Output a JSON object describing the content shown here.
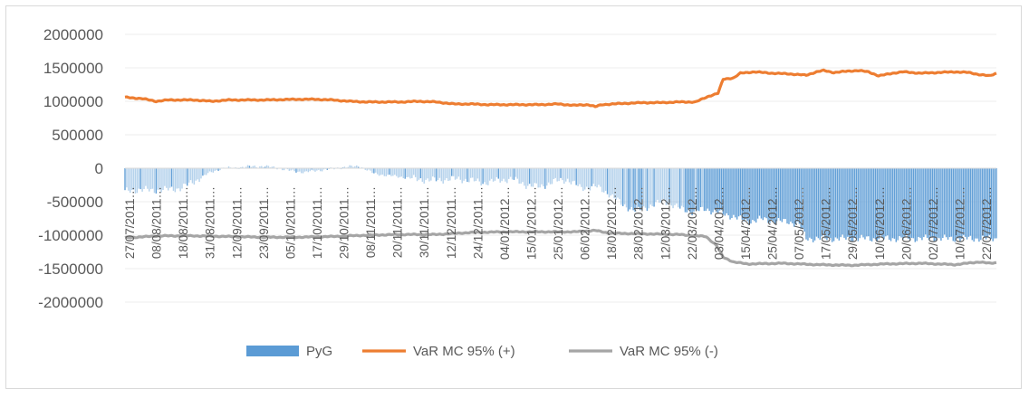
{
  "chart_data": {
    "type": "bar+line",
    "title": "",
    "xlabel": "",
    "ylabel": "",
    "ylim": [
      -2000000,
      2000000
    ],
    "yticks": [
      2000000,
      1500000,
      1000000,
      500000,
      0,
      -500000,
      -1000000,
      -1500000,
      -2000000
    ],
    "ytick_labels": [
      "2000000",
      "1500000",
      "1000000",
      "500000",
      "0",
      "-500000",
      "-1000000",
      "-1500000",
      "-2000000"
    ],
    "xtick_labels": [
      "27/07/2011",
      "08/08/2011",
      "18/08/2011",
      "31/08/2011",
      "12/09/2011",
      "23/09/2011",
      "05/10/2011",
      "17/10/2011",
      "29/10/2011",
      "08/11/2011",
      "20/11/2011",
      "30/11/2011",
      "12/12/2011",
      "24/12/2011",
      "04/01/2012",
      "15/01/2012",
      "25/01/2012",
      "06/02/2012",
      "18/02/2012",
      "28/02/2012",
      "12/03/2012",
      "22/03/2012",
      "03/04/2012",
      "15/04/2012",
      "25/04/2012",
      "07/05/2012",
      "17/05/2012",
      "29/05/2012",
      "10/06/2012",
      "20/06/2012",
      "02/07/2012",
      "10/07/2012",
      "22/07/2012"
    ],
    "xtick_suffix": "…",
    "grid": true,
    "legend_position": "bottom",
    "series": [
      {
        "name": "PyG",
        "kind": "bar",
        "color": "#5b9bd5",
        "anchors": [
          [
            0,
            -350000
          ],
          [
            8,
            -320000
          ],
          [
            16,
            -330000
          ],
          [
            24,
            -320000
          ],
          [
            32,
            -300000
          ],
          [
            40,
            -200000
          ],
          [
            48,
            -80000
          ],
          [
            56,
            0
          ],
          [
            64,
            5000
          ],
          [
            72,
            25000
          ],
          [
            80,
            30000
          ],
          [
            88,
            5000
          ],
          [
            96,
            -40000
          ],
          [
            104,
            -60000
          ],
          [
            112,
            -30000
          ],
          [
            120,
            -10000
          ],
          [
            128,
            20000
          ],
          [
            136,
            30000
          ],
          [
            144,
            -80000
          ],
          [
            152,
            -110000
          ],
          [
            160,
            -130000
          ],
          [
            168,
            -160000
          ],
          [
            176,
            -180000
          ],
          [
            184,
            -170000
          ],
          [
            192,
            -160000
          ],
          [
            200,
            -180000
          ],
          [
            208,
            -220000
          ],
          [
            216,
            -180000
          ],
          [
            224,
            -160000
          ],
          [
            232,
            -250000
          ],
          [
            240,
            -280000
          ],
          [
            248,
            -200000
          ],
          [
            256,
            -170000
          ],
          [
            264,
            -300000
          ],
          [
            272,
            -270000
          ],
          [
            280,
            -380000
          ],
          [
            288,
            -550000
          ],
          [
            296,
            -640000
          ],
          [
            304,
            -560000
          ],
          [
            312,
            -490000
          ],
          [
            320,
            -590000
          ],
          [
            328,
            -650000
          ],
          [
            336,
            -610000
          ],
          [
            344,
            -670000
          ],
          [
            352,
            -720000
          ],
          [
            360,
            -800000
          ],
          [
            368,
            -760000
          ],
          [
            376,
            -790000
          ],
          [
            384,
            -800000
          ],
          [
            390,
            -840000
          ],
          [
            394,
            -1050000
          ]
        ]
      },
      {
        "name": "VaR  MC 95% (+)",
        "kind": "line",
        "color": "#ed7d31",
        "anchors": [
          [
            0,
            1060000
          ],
          [
            10,
            1040000
          ],
          [
            18,
            1000000
          ],
          [
            25,
            1020000
          ],
          [
            40,
            1020000
          ],
          [
            50,
            1000000
          ],
          [
            60,
            1020000
          ],
          [
            80,
            1020000
          ],
          [
            100,
            1030000
          ],
          [
            110,
            1030000
          ],
          [
            120,
            1020000
          ],
          [
            130,
            1000000
          ],
          [
            140,
            990000
          ],
          [
            150,
            990000
          ],
          [
            160,
            990000
          ],
          [
            170,
            1000000
          ],
          [
            180,
            990000
          ],
          [
            190,
            960000
          ],
          [
            200,
            960000
          ],
          [
            210,
            950000
          ],
          [
            220,
            950000
          ],
          [
            230,
            950000
          ],
          [
            240,
            950000
          ],
          [
            250,
            960000
          ],
          [
            260,
            940000
          ],
          [
            268,
            950000
          ],
          [
            272,
            920000
          ],
          [
            276,
            950000
          ],
          [
            282,
            960000
          ],
          [
            290,
            970000
          ],
          [
            300,
            980000
          ],
          [
            310,
            980000
          ],
          [
            320,
            990000
          ],
          [
            330,
            990000
          ],
          [
            338,
            1080000
          ],
          [
            343,
            1120000
          ],
          [
            346,
            1330000
          ],
          [
            352,
            1350000
          ],
          [
            356,
            1420000
          ],
          [
            364,
            1440000
          ],
          [
            374,
            1420000
          ],
          [
            384,
            1410000
          ],
          [
            394,
            1390000
          ],
          [
            400,
            1440000
          ],
          [
            404,
            1460000
          ],
          [
            410,
            1430000
          ],
          [
            418,
            1450000
          ],
          [
            424,
            1460000
          ],
          [
            430,
            1440000
          ],
          [
            436,
            1380000
          ],
          [
            444,
            1420000
          ],
          [
            450,
            1440000
          ],
          [
            460,
            1420000
          ],
          [
            470,
            1430000
          ],
          [
            480,
            1440000
          ],
          [
            488,
            1430000
          ],
          [
            494,
            1400000
          ],
          [
            500,
            1380000
          ],
          [
            504,
            1420000
          ]
        ]
      },
      {
        "name": "VaR  MC 95% (-)",
        "kind": "line",
        "color": "#a5a5a5",
        "anchors": [
          [
            0,
            -1040000
          ],
          [
            20,
            -1010000
          ],
          [
            40,
            -1010000
          ],
          [
            60,
            -1020000
          ],
          [
            80,
            -1030000
          ],
          [
            100,
            -1030000
          ],
          [
            120,
            -1020000
          ],
          [
            140,
            -1000000
          ],
          [
            160,
            -990000
          ],
          [
            180,
            -990000
          ],
          [
            200,
            -960000
          ],
          [
            220,
            -950000
          ],
          [
            240,
            -950000
          ],
          [
            260,
            -950000
          ],
          [
            272,
            -930000
          ],
          [
            280,
            -970000
          ],
          [
            300,
            -980000
          ],
          [
            320,
            -990000
          ],
          [
            336,
            -1020000
          ],
          [
            342,
            -1150000
          ],
          [
            346,
            -1330000
          ],
          [
            352,
            -1400000
          ],
          [
            360,
            -1430000
          ],
          [
            380,
            -1420000
          ],
          [
            400,
            -1440000
          ],
          [
            420,
            -1450000
          ],
          [
            440,
            -1430000
          ],
          [
            460,
            -1420000
          ],
          [
            480,
            -1440000
          ],
          [
            494,
            -1400000
          ],
          [
            500,
            -1420000
          ],
          [
            504,
            -1410000
          ]
        ]
      }
    ],
    "n_points": 505
  }
}
